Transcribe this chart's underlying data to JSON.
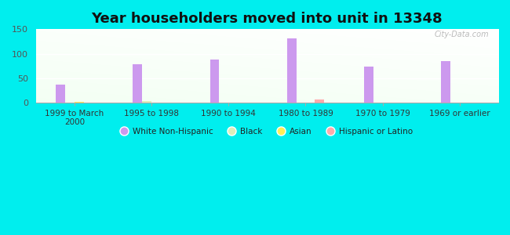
{
  "title": "Year householders moved into unit in 13348",
  "categories": [
    "1999 to March\n2000",
    "1995 to 1998",
    "1990 to 1994",
    "1980 to 1989",
    "1970 to 1979",
    "1969 or earlier"
  ],
  "white_non_hispanic": [
    37,
    78,
    88,
    131,
    73,
    84
  ],
  "black": [
    0,
    3,
    0,
    0,
    0,
    0
  ],
  "asian": [
    2,
    0,
    0,
    0,
    0,
    0
  ],
  "hispanic": [
    0,
    0,
    0,
    6,
    0,
    0
  ],
  "white_color": "#cc99ee",
  "black_color": "#ddeebb",
  "asian_color": "#ffee55",
  "hispanic_color": "#ffaaaa",
  "background_outer": "#00eeee",
  "ylim": [
    0,
    150
  ],
  "yticks": [
    0,
    50,
    100,
    150
  ],
  "bar_width": 0.12,
  "title_fontsize": 13
}
